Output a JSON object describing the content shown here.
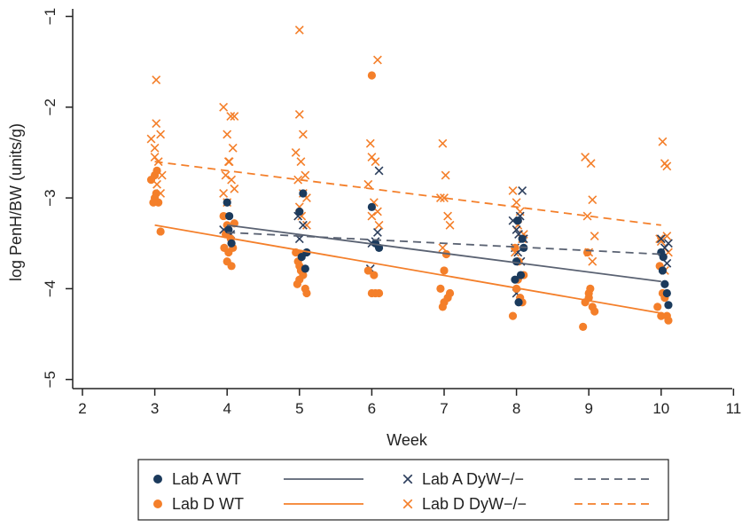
{
  "chart_data": {
    "type": "scatter",
    "xlabel": "Week",
    "ylabel": "log PenH/BW (units/g)",
    "xlim": [
      2,
      11
    ],
    "ylim": [
      -5.15,
      -0.9
    ],
    "x_ticks": [
      2,
      3,
      4,
      5,
      6,
      7,
      8,
      9,
      10,
      11
    ],
    "y_ticks": [
      -5,
      -4,
      -3,
      -2,
      -1
    ],
    "y_tick_labels": [
      "−5",
      "−4",
      "−3",
      "−2",
      "−1"
    ],
    "grid": false,
    "legend_position": "bottom",
    "series": [
      {
        "name": "Lab A WT",
        "marker": "circle",
        "color": "#1b3a5c",
        "points": [
          [
            4.0,
            -3.05
          ],
          [
            4.03,
            -3.2
          ],
          [
            4.06,
            -3.5
          ],
          [
            4.02,
            -3.35
          ],
          [
            5.0,
            -3.15
          ],
          [
            5.05,
            -2.95
          ],
          [
            5.1,
            -3.6
          ],
          [
            5.08,
            -3.78
          ],
          [
            5.03,
            -3.65
          ],
          [
            6.0,
            -3.1
          ],
          [
            6.05,
            -3.5
          ],
          [
            6.1,
            -3.55
          ],
          [
            8.0,
            -3.7
          ],
          [
            7.98,
            -3.9
          ],
          [
            8.03,
            -4.15
          ],
          [
            8.06,
            -3.85
          ],
          [
            8.08,
            -3.45
          ],
          [
            8.1,
            -3.55
          ],
          [
            8.02,
            -3.25
          ],
          [
            10.0,
            -3.6
          ],
          [
            10.03,
            -3.65
          ],
          [
            10.05,
            -3.95
          ],
          [
            10.08,
            -4.05
          ],
          [
            10.1,
            -4.18
          ],
          [
            10.02,
            -3.8
          ]
        ],
        "trend": {
          "style": "solid",
          "x": [
            4,
            10
          ],
          "y": [
            -3.3,
            -3.92
          ]
        }
      },
      {
        "name": "Lab D WT",
        "marker": "circle",
        "color": "#f47f2a",
        "points": [
          [
            2.95,
            -2.8
          ],
          [
            3.0,
            -2.75
          ],
          [
            3.02,
            -2.95
          ],
          [
            3.0,
            -3.0
          ],
          [
            3.05,
            -3.05
          ],
          [
            2.98,
            -3.05
          ],
          [
            3.08,
            -3.37
          ],
          [
            3.03,
            -2.7
          ],
          [
            3.95,
            -3.2
          ],
          [
            4.0,
            -3.3
          ],
          [
            4.05,
            -3.45
          ],
          [
            4.02,
            -3.6
          ],
          [
            4.08,
            -3.55
          ],
          [
            4.0,
            -3.7
          ],
          [
            4.06,
            -3.75
          ],
          [
            3.98,
            -3.4
          ],
          [
            4.1,
            -3.28
          ],
          [
            3.96,
            -3.55
          ],
          [
            4.95,
            -3.6
          ],
          [
            4.98,
            -3.7
          ],
          [
            5.0,
            -3.75
          ],
          [
            5.02,
            -3.8
          ],
          [
            5.05,
            -3.85
          ],
          [
            5.0,
            -3.9
          ],
          [
            4.97,
            -3.95
          ],
          [
            5.08,
            -4.0
          ],
          [
            5.1,
            -4.05
          ],
          [
            5.03,
            -3.62
          ],
          [
            6.0,
            -1.65
          ],
          [
            5.95,
            -3.8
          ],
          [
            6.0,
            -4.05
          ],
          [
            6.05,
            -4.05
          ],
          [
            6.1,
            -4.05
          ],
          [
            6.03,
            -3.85
          ],
          [
            6.95,
            -4.0
          ],
          [
            7.0,
            -4.15
          ],
          [
            7.05,
            -4.1
          ],
          [
            7.0,
            -3.8
          ],
          [
            7.08,
            -4.05
          ],
          [
            6.98,
            -4.2
          ],
          [
            7.03,
            -3.62
          ],
          [
            7.95,
            -4.3
          ],
          [
            8.0,
            -4.0
          ],
          [
            8.02,
            -3.9
          ],
          [
            8.05,
            -4.1
          ],
          [
            8.08,
            -4.15
          ],
          [
            8.1,
            -3.85
          ],
          [
            7.98,
            -3.55
          ],
          [
            8.03,
            -3.7
          ],
          [
            8.92,
            -4.42
          ],
          [
            8.95,
            -4.15
          ],
          [
            9.0,
            -4.1
          ],
          [
            9.02,
            -4.0
          ],
          [
            9.05,
            -4.2
          ],
          [
            9.08,
            -4.25
          ],
          [
            9.0,
            -4.05
          ],
          [
            8.98,
            -3.6
          ],
          [
            9.95,
            -4.2
          ],
          [
            10.0,
            -4.3
          ],
          [
            10.02,
            -4.05
          ],
          [
            10.05,
            -4.1
          ],
          [
            10.08,
            -4.3
          ],
          [
            10.1,
            -4.35
          ],
          [
            9.98,
            -3.75
          ]
        ],
        "trend": {
          "style": "solid",
          "x": [
            3,
            10
          ],
          "y": [
            -3.3,
            -4.27
          ]
        }
      },
      {
        "name": "Lab A DyW−/−",
        "marker": "x",
        "color": "#2c3e5c",
        "points": [
          [
            3.95,
            -3.35
          ],
          [
            4.05,
            -3.4
          ],
          [
            5.0,
            -3.45
          ],
          [
            5.05,
            -3.3
          ],
          [
            4.98,
            -3.2
          ],
          [
            5.98,
            -3.78
          ],
          [
            6.0,
            -3.5
          ],
          [
            6.05,
            -3.48
          ],
          [
            6.08,
            -3.38
          ],
          [
            6.1,
            -2.7
          ],
          [
            7.95,
            -3.25
          ],
          [
            8.0,
            -3.35
          ],
          [
            8.03,
            -3.4
          ],
          [
            8.05,
            -3.2
          ],
          [
            8.08,
            -2.92
          ],
          [
            8.1,
            -3.45
          ],
          [
            7.98,
            -3.55
          ],
          [
            8.02,
            -3.6
          ],
          [
            8.06,
            -3.7
          ],
          [
            8.0,
            -4.05
          ],
          [
            10.0,
            -3.45
          ],
          [
            10.05,
            -3.55
          ],
          [
            10.08,
            -3.72
          ],
          [
            10.1,
            -3.5
          ]
        ],
        "trend": {
          "style": "dashed",
          "x": [
            4,
            10
          ],
          "y": [
            -3.38,
            -3.62
          ]
        }
      },
      {
        "name": "Lab D DyW−/−",
        "marker": "x",
        "color": "#f47f2a",
        "points": [
          [
            2.95,
            -2.35
          ],
          [
            3.0,
            -2.45
          ],
          [
            3.02,
            -2.18
          ],
          [
            3.05,
            -2.6
          ],
          [
            3.08,
            -2.3
          ],
          [
            3.0,
            -2.55
          ],
          [
            3.03,
            -2.85
          ],
          [
            3.08,
            -2.95
          ],
          [
            3.1,
            -2.75
          ],
          [
            3.02,
            -1.7
          ],
          [
            3.95,
            -2.0
          ],
          [
            4.0,
            -2.3
          ],
          [
            4.05,
            -2.1
          ],
          [
            4.08,
            -2.45
          ],
          [
            4.02,
            -2.6
          ],
          [
            3.98,
            -2.75
          ],
          [
            4.06,
            -2.8
          ],
          [
            3.95,
            -2.95
          ],
          [
            4.1,
            -2.9
          ],
          [
            4.0,
            -3.05
          ],
          [
            4.03,
            -2.6
          ],
          [
            4.1,
            -2.1
          ],
          [
            5.0,
            -1.15
          ],
          [
            5.0,
            -2.08
          ],
          [
            5.05,
            -2.3
          ],
          [
            4.95,
            -2.5
          ],
          [
            5.02,
            -2.6
          ],
          [
            5.08,
            -2.75
          ],
          [
            4.98,
            -2.8
          ],
          [
            5.05,
            -2.95
          ],
          [
            5.1,
            -3.0
          ],
          [
            5.0,
            -3.1
          ],
          [
            5.03,
            -3.2
          ],
          [
            5.1,
            -3.3
          ],
          [
            6.08,
            -1.48
          ],
          [
            5.98,
            -2.4
          ],
          [
            6.0,
            -2.55
          ],
          [
            6.05,
            -2.6
          ],
          [
            5.95,
            -2.85
          ],
          [
            6.03,
            -3.05
          ],
          [
            6.08,
            -3.15
          ],
          [
            6.0,
            -3.2
          ],
          [
            6.1,
            -3.3
          ],
          [
            6.98,
            -2.4
          ],
          [
            7.02,
            -2.75
          ],
          [
            6.95,
            -3.0
          ],
          [
            7.0,
            -3.0
          ],
          [
            7.05,
            -3.2
          ],
          [
            7.08,
            -3.3
          ],
          [
            6.98,
            -3.55
          ],
          [
            7.95,
            -2.92
          ],
          [
            8.0,
            -3.05
          ],
          [
            8.05,
            -3.15
          ],
          [
            8.02,
            -3.3
          ],
          [
            8.08,
            -3.45
          ],
          [
            8.1,
            -3.4
          ],
          [
            7.98,
            -3.6
          ],
          [
            8.95,
            -2.55
          ],
          [
            9.03,
            -2.62
          ],
          [
            9.05,
            -3.02
          ],
          [
            8.98,
            -3.2
          ],
          [
            9.08,
            -3.42
          ],
          [
            9.0,
            -3.6
          ],
          [
            9.05,
            -3.7
          ],
          [
            10.02,
            -2.38
          ],
          [
            10.05,
            -2.62
          ],
          [
            10.08,
            -2.65
          ],
          [
            9.98,
            -3.45
          ],
          [
            10.0,
            -3.48
          ],
          [
            10.08,
            -3.42
          ],
          [
            10.1,
            -3.6
          ],
          [
            10.05,
            -3.8
          ]
        ],
        "trend": {
          "style": "dashed",
          "x": [
            3,
            10
          ],
          "y": [
            -2.6,
            -3.3
          ]
        }
      }
    ]
  },
  "legend": {
    "items": [
      {
        "label": "Lab A WT",
        "marker": "circle",
        "color": "#1b3a5c",
        "line_style": "solid",
        "line_color": "#5a6272"
      },
      {
        "label": "Lab A DyW−/−",
        "marker": "x",
        "color": "#2c3e5c",
        "line_style": "dashed",
        "line_color": "#5a6272"
      },
      {
        "label": "Lab D WT",
        "marker": "circle",
        "color": "#f47f2a",
        "line_style": "solid",
        "line_color": "#f47f2a"
      },
      {
        "label": "Lab D DyW−/−",
        "marker": "x",
        "color": "#f47f2a",
        "line_style": "dashed",
        "line_color": "#f47f2a"
      }
    ]
  }
}
